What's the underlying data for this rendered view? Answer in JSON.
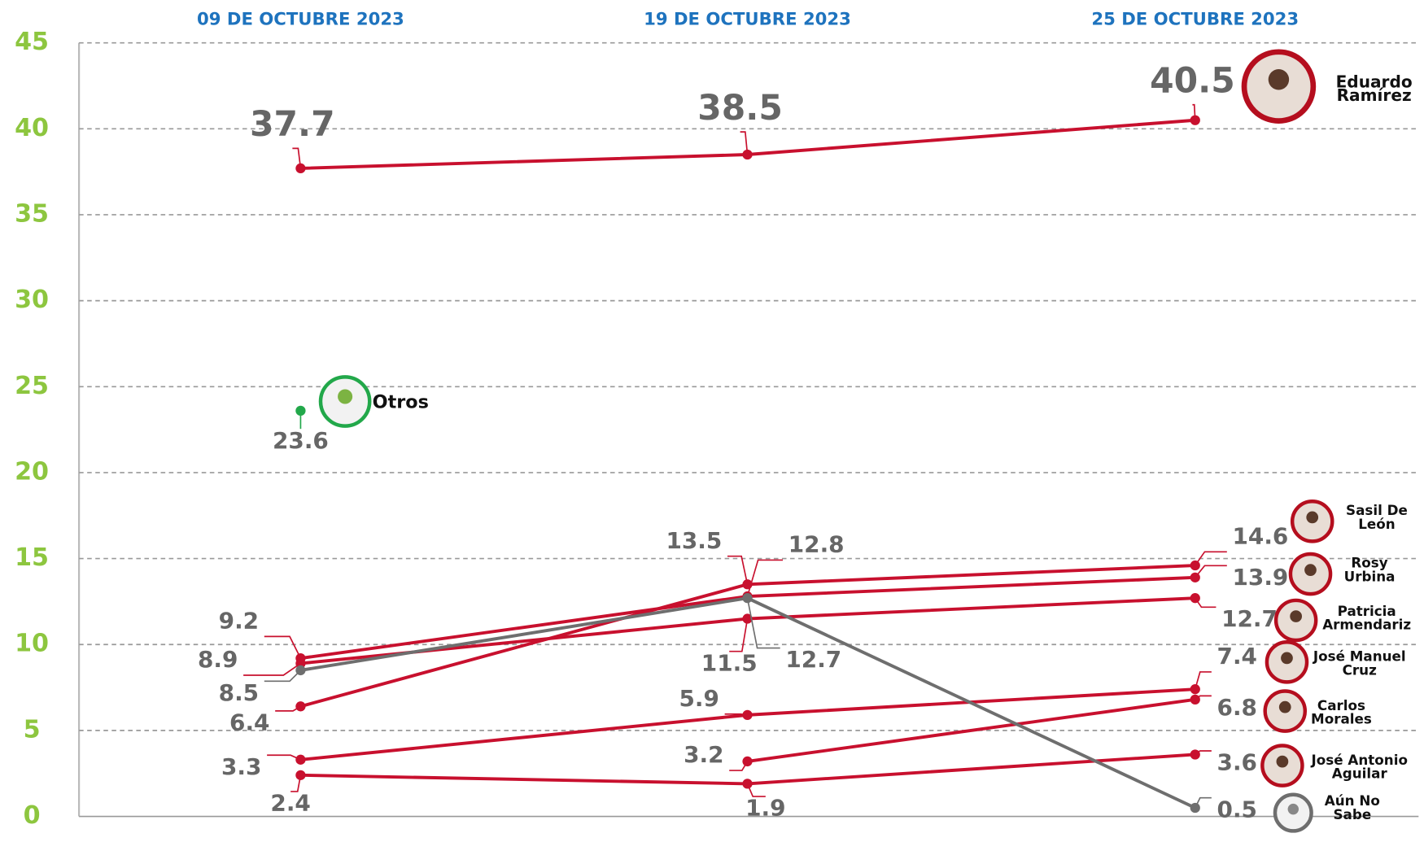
{
  "chart_data": {
    "type": "line",
    "categories": [
      "09 DE OCTUBRE 2023",
      "19 DE OCTUBRE 2023",
      "25 DE OCTUBRE 2023"
    ],
    "ylim": [
      0,
      45
    ],
    "yticks": [
      0,
      5,
      10,
      15,
      20,
      25,
      30,
      35,
      40,
      45
    ],
    "grid": true,
    "series": [
      {
        "name": "Eduardo Ramírez",
        "color": "#c8102e",
        "values": [
          37.7,
          38.5,
          40.5
        ]
      },
      {
        "name": "Sasil De León",
        "color": "#c8102e",
        "values": [
          6.4,
          13.5,
          14.6
        ]
      },
      {
        "name": "Rosy Urbina",
        "color": "#c8102e",
        "values": [
          9.2,
          12.8,
          13.9
        ]
      },
      {
        "name": "Patricia Armendariz",
        "color": "#c8102e",
        "values": [
          8.9,
          11.5,
          12.7
        ]
      },
      {
        "name": "José Manuel Cruz",
        "color": "#c8102e",
        "values": [
          3.3,
          5.9,
          7.4
        ]
      },
      {
        "name": "Carlos Morales",
        "color": "#c8102e",
        "values": [
          null,
          3.2,
          6.8
        ]
      },
      {
        "name": "José Antonio Aguilar",
        "color": "#c8102e",
        "values": [
          2.4,
          1.9,
          3.6
        ]
      },
      {
        "name": "Aún No Sabe",
        "color": "#6e6e6e",
        "values": [
          8.5,
          12.7,
          0.5
        ]
      },
      {
        "name": "Otros",
        "color": "#22a84a",
        "values": [
          23.6,
          null,
          null
        ]
      }
    ]
  }
}
